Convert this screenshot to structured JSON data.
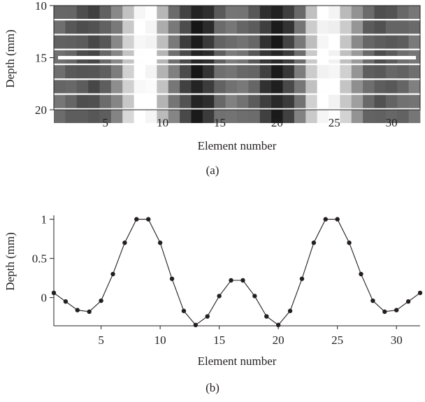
{
  "panels": [
    {
      "panel_label": "(a)",
      "xlabel": "Element number",
      "ylabel": "Depth (mm)",
      "xticks": [
        "5",
        "10",
        "15",
        "20",
        "25",
        "30"
      ],
      "yticks": [
        "10",
        "15",
        "20"
      ]
    },
    {
      "panel_label": "(b)",
      "xlabel": "Element number",
      "ylabel": "Depth (mm)",
      "xticks": [
        "5",
        "10",
        "15",
        "20",
        "25",
        "30"
      ],
      "yticks": [
        "1",
        "0.5",
        "0"
      ]
    }
  ],
  "colors": {
    "line": "#231f20",
    "marker": "#231f20",
    "highlight_line": "#ffffff"
  },
  "chart_data": [
    {
      "type": "heatmap",
      "colormap": "gray",
      "xlabel": "Element number",
      "ylabel": "Depth (mm)",
      "xlim": [
        0.5,
        32.5
      ],
      "ylim": [
        10,
        20
      ],
      "y_inverted": true,
      "xticks": [
        5,
        10,
        15,
        20,
        25,
        30
      ],
      "yticks": [
        10,
        15,
        20
      ],
      "x": [
        1,
        2,
        3,
        4,
        5,
        6,
        7,
        8,
        9,
        10,
        11,
        12,
        13,
        14,
        15,
        16,
        17,
        18,
        19,
        20,
        21,
        22,
        23,
        24,
        25,
        26,
        27,
        28,
        29,
        30,
        31,
        32
      ],
      "column_intensity": [
        0.42,
        0.38,
        0.33,
        0.3,
        0.38,
        0.52,
        0.8,
        1.0,
        0.98,
        0.72,
        0.47,
        0.28,
        0.12,
        0.2,
        0.4,
        0.46,
        0.44,
        0.38,
        0.22,
        0.12,
        0.24,
        0.46,
        0.78,
        0.98,
        0.97,
        0.78,
        0.58,
        0.4,
        0.34,
        0.37,
        0.4,
        0.46
      ],
      "highlight_line_depth": 15,
      "grid": false
    },
    {
      "type": "line",
      "xlabel": "Element number",
      "ylabel": "Depth (mm)",
      "xlim": [
        1,
        32
      ],
      "ylim": [
        -0.36,
        1.05
      ],
      "xticks": [
        5,
        10,
        15,
        20,
        25,
        30
      ],
      "yticks": [
        0,
        0.5,
        1
      ],
      "x": [
        1,
        2,
        3,
        4,
        5,
        6,
        7,
        8,
        9,
        10,
        11,
        12,
        13,
        14,
        15,
        16,
        17,
        18,
        19,
        20,
        21,
        22,
        23,
        24,
        25,
        26,
        27,
        28,
        29,
        30,
        31,
        32
      ],
      "y": [
        0.06,
        -0.05,
        -0.16,
        -0.18,
        -0.04,
        0.3,
        0.7,
        1.0,
        1.0,
        0.7,
        0.24,
        -0.17,
        -0.35,
        -0.24,
        0.02,
        0.22,
        0.22,
        0.02,
        -0.24,
        -0.35,
        -0.17,
        0.24,
        0.7,
        1.0,
        1.0,
        0.7,
        0.3,
        -0.04,
        -0.18,
        -0.16,
        -0.05,
        0.06
      ],
      "markers": true,
      "grid": false
    }
  ]
}
